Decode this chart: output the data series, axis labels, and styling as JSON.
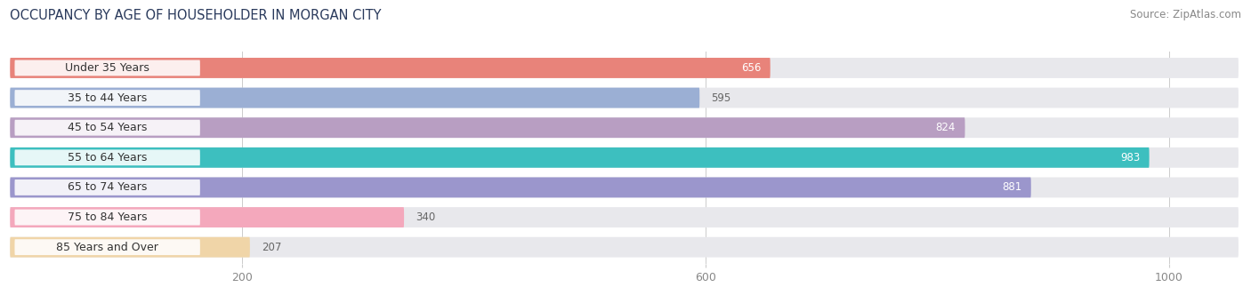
{
  "title": "OCCUPANCY BY AGE OF HOUSEHOLDER IN MORGAN CITY",
  "source": "Source: ZipAtlas.com",
  "categories": [
    "Under 35 Years",
    "35 to 44 Years",
    "45 to 54 Years",
    "55 to 64 Years",
    "65 to 74 Years",
    "75 to 84 Years",
    "85 Years and Over"
  ],
  "values": [
    656,
    595,
    824,
    983,
    881,
    340,
    207
  ],
  "bar_colors": [
    "#E8837A",
    "#9BAFD4",
    "#B89EC2",
    "#3DBFBF",
    "#9B96CC",
    "#F4A8BC",
    "#F0D5A8"
  ],
  "bar_bg_color": "#E8E8EC",
  "xlim_max": 1060,
  "xticks": [
    200,
    600,
    1000
  ],
  "title_fontsize": 10.5,
  "source_fontsize": 8.5,
  "tick_fontsize": 9,
  "cat_fontsize": 9,
  "val_fontsize": 8.5,
  "background_color": "#ffffff",
  "bar_height": 0.68,
  "value_threshold": 650,
  "title_color": "#2a3a5c",
  "source_color": "#888888",
  "tick_color": "#888888",
  "cat_label_color": "#333333",
  "val_color_inside": "#ffffff",
  "val_color_outside": "#666666"
}
